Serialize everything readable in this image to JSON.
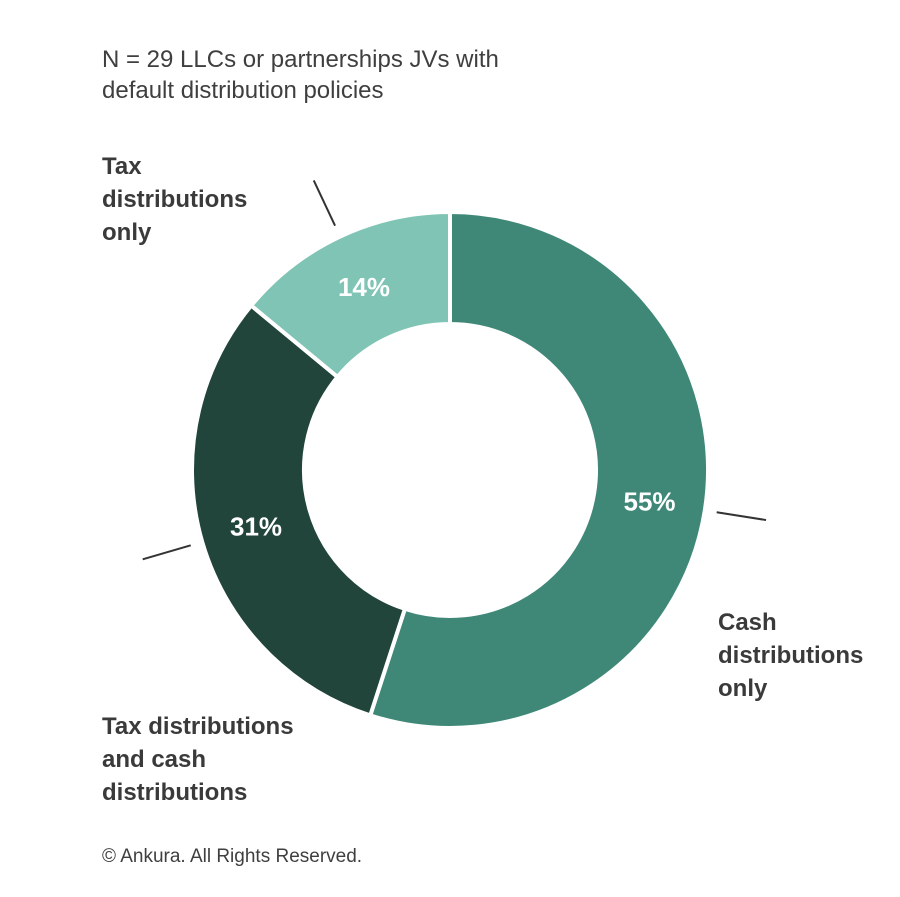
{
  "title": {
    "line1": "N = 29 LLCs or partnerships JVs with",
    "line2": "default distribution policies"
  },
  "chart_data": {
    "type": "pie",
    "style": "donut",
    "slices": [
      {
        "label": "Cash distributions only",
        "value": 55,
        "value_label": "55%",
        "color": "#3f8878"
      },
      {
        "label": "Tax distributions and cash distributions",
        "value": 31,
        "value_label": "31%",
        "color": "#21443b"
      },
      {
        "label": "Tax distributions only",
        "value": 14,
        "value_label": "14%",
        "color": "#7fc4b5"
      }
    ],
    "start": "top, clockwise",
    "legend": "callout labels with leader lines"
  },
  "callouts": {
    "cash": {
      "line1": "Cash",
      "line2": "distributions",
      "line3": "only"
    },
    "both": {
      "line1": "Tax distributions",
      "line2": "and cash",
      "line3": "distributions"
    },
    "tax": {
      "line1": "Tax",
      "line2": "distributions",
      "line3": "only"
    }
  },
  "footer": {
    "text": "© Ankura. All Rights Reserved."
  }
}
